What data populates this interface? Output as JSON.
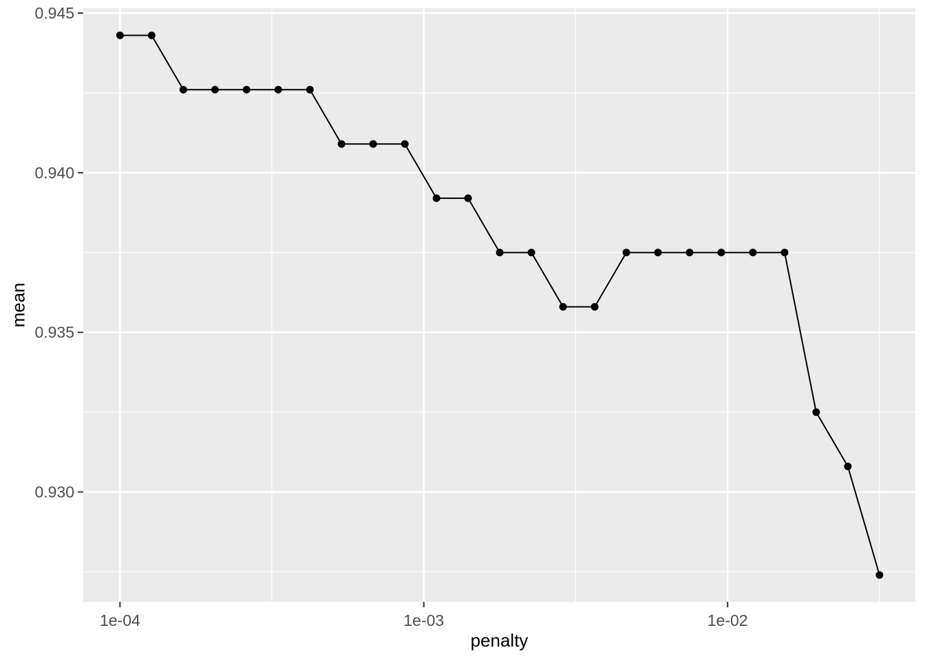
{
  "figure": {
    "x_axis_title": "penalty",
    "y_axis_title": "mean"
  },
  "colors": {
    "plot_background": "#FFFFFF",
    "panel_background": "#EBEBEB",
    "grid_major": "#FFFFFF",
    "grid_minor": "#FFFFFF",
    "series_line": "#000000",
    "point_fill": "#000000",
    "axis_text": "#4D4D4D",
    "tick_mark": "#333333",
    "axis_title": "#000000"
  },
  "chart_data": {
    "type": "line",
    "title": "",
    "xlabel": "penalty",
    "ylabel": "mean",
    "x_scale": "log10",
    "y_scale": "linear",
    "grid": "major+minor",
    "legend": "none",
    "marker": "filled-circle",
    "xlim": [
      7.57e-05,
      0.0415
    ],
    "ylim": [
      0.92656,
      0.94515
    ],
    "x_ticks": {
      "values": [
        0.0001,
        0.001,
        0.01
      ],
      "labels": [
        "1e-04",
        "1e-03",
        "1e-02"
      ]
    },
    "x_minor_ticks": [
      0.000316,
      0.00316,
      0.0316
    ],
    "y_ticks": {
      "values": [
        0.945,
        0.94,
        0.935,
        0.93
      ],
      "labels": [
        "0.945",
        "0.940",
        "0.935",
        "0.930"
      ]
    },
    "y_minor_ticks": [
      0.9425,
      0.9375,
      0.9325,
      0.9275
    ],
    "series": [
      {
        "name": "mean",
        "x": [
          0.0001,
          0.0001271,
          0.0001616,
          0.0002054,
          0.000261,
          0.0003318,
          0.0004217,
          0.000536,
          0.0006813,
          0.000866,
          0.0011007,
          0.001399,
          0.0017783,
          0.0022603,
          0.002873,
          0.0036517,
          0.0046416,
          0.0059,
          0.0074989,
          0.0095318,
          0.0121153,
          0.0153993,
          0.0195734,
          0.0248786,
          0.0316228
        ],
        "y": [
          0.9443,
          0.9443,
          0.9426,
          0.9426,
          0.9426,
          0.9426,
          0.9426,
          0.9409,
          0.9409,
          0.9409,
          0.9392,
          0.9392,
          0.9375,
          0.9375,
          0.9358,
          0.9358,
          0.9375,
          0.9375,
          0.9375,
          0.9375,
          0.9375,
          0.9375,
          0.9325,
          0.9308,
          0.9274
        ]
      }
    ]
  }
}
